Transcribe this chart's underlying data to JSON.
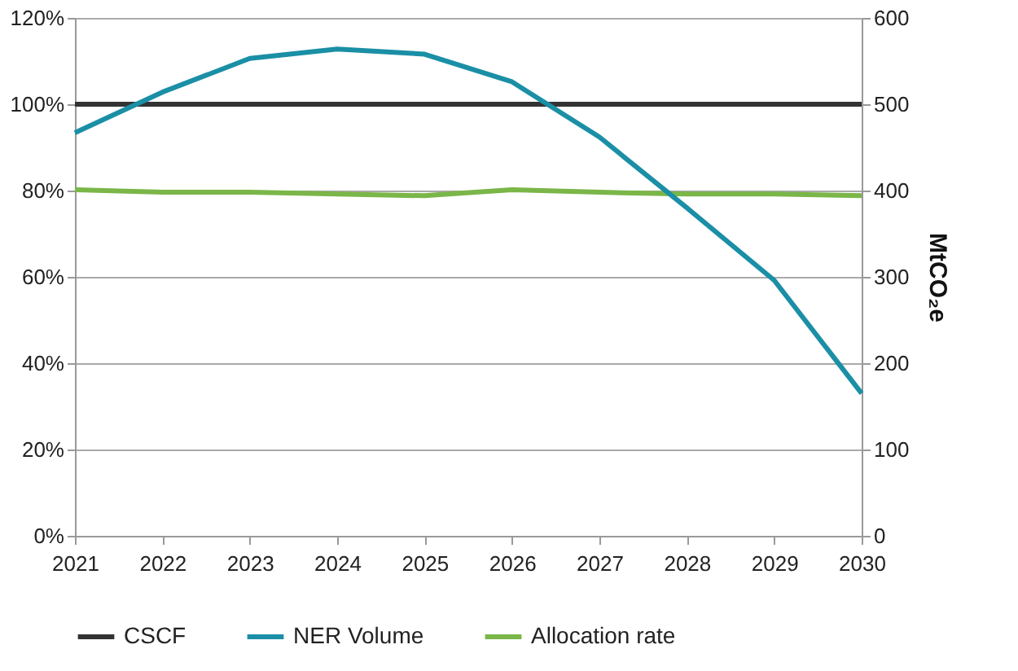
{
  "chart_data": {
    "type": "line",
    "categories": [
      "2021",
      "2022",
      "2023",
      "2024",
      "2025",
      "2026",
      "2027",
      "2028",
      "2029",
      "2030"
    ],
    "series": [
      {
        "name": "CSCF",
        "color": "#333333",
        "axis": "y",
        "values": [
          100,
          100,
          100,
          100,
          100,
          100,
          100,
          100,
          100,
          100
        ]
      },
      {
        "name": "NER Volume",
        "color": "#1a8fa6",
        "axis": "y2",
        "values": [
          467,
          514,
          553,
          564,
          558,
          526,
          462,
          380,
          296,
          165
        ]
      },
      {
        "name": "Allocation rate",
        "color": "#7ab648",
        "axis": "y",
        "values": [
          80.2,
          79.6,
          79.6,
          79.2,
          78.8,
          80.2,
          79.6,
          79.2,
          79.2,
          78.8
        ]
      }
    ],
    "ylim": [
      0,
      120
    ],
    "yticks": [
      {
        "value": 0,
        "label": "0%"
      },
      {
        "value": 20,
        "label": "20%"
      },
      {
        "value": 40,
        "label": "40%"
      },
      {
        "value": 60,
        "label": "60%"
      },
      {
        "value": 80,
        "label": "80%"
      },
      {
        "value": 100,
        "label": "100%"
      },
      {
        "value": 120,
        "label": "120%"
      }
    ],
    "y2lim": [
      0,
      600
    ],
    "y2ticks": [
      0,
      100,
      200,
      300,
      400,
      500,
      600
    ],
    "y2label": "MtCO₂e",
    "grid": "y",
    "legend": "bottom",
    "marker": "none",
    "line_style": "solid"
  }
}
